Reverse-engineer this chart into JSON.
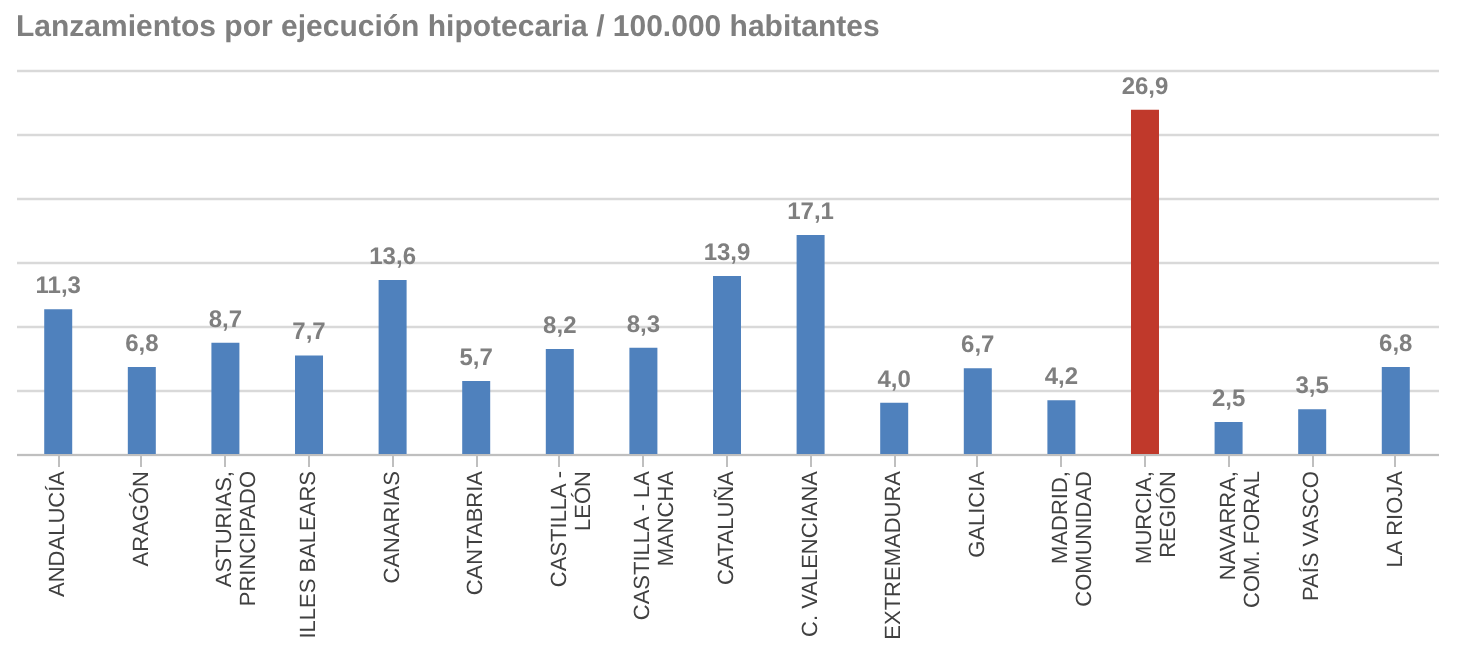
{
  "chart_data": {
    "type": "bar",
    "title": "Lanzamientos por ejecución hipotecaria / 100.000 habitantes",
    "categories": [
      "ANDALUCÍA",
      "ARAGÓN",
      "ASTURIAS,\nPRINCIPADO",
      "ILLES BALEARS",
      "CANARIAS",
      "CANTABRIA",
      "CASTILLA -\nLEÓN",
      "CASTILLA - LA\nMANCHA",
      "CATALUÑA",
      "C. VALENCIANA",
      "EXTREMADURA",
      "GALICIA",
      "MADRID,\nCOMUNIDAD",
      "MURCIA,\nREGIÓN",
      "NAVARRA,\nCOM. FORAL",
      "PAÍS VASCO",
      "LA RIOJA"
    ],
    "values": [
      11.3,
      6.8,
      8.7,
      7.7,
      13.6,
      5.7,
      8.2,
      8.3,
      13.9,
      17.1,
      4.0,
      6.7,
      4.2,
      26.9,
      2.5,
      3.5,
      6.8
    ],
    "value_labels": [
      "11,3",
      "6,8",
      "8,7",
      "7,7",
      "13,6",
      "5,7",
      "8,2",
      "8,3",
      "13,9",
      "17,1",
      "4,0",
      "6,7",
      "4,2",
      "26,9",
      "2,5",
      "3,5",
      "6,8"
    ],
    "colors": [
      "#4f81bd",
      "#4f81bd",
      "#4f81bd",
      "#4f81bd",
      "#4f81bd",
      "#4f81bd",
      "#4f81bd",
      "#4f81bd",
      "#4f81bd",
      "#4f81bd",
      "#4f81bd",
      "#4f81bd",
      "#4f81bd",
      "#c0392b",
      "#4f81bd",
      "#4f81bd",
      "#4f81bd"
    ],
    "ylim": [
      0,
      30
    ],
    "yticks": [
      {
        "value": 0,
        "label": null
      },
      {
        "value": 5,
        "label": null
      },
      {
        "value": 10,
        "label": null
      },
      {
        "value": 15,
        "label": null
      },
      {
        "value": 20,
        "label": null
      },
      {
        "value": 25,
        "label": null
      },
      {
        "value": 30,
        "label": null
      }
    ],
    "grid": "y",
    "tick_labels": "x",
    "legend": false
  }
}
